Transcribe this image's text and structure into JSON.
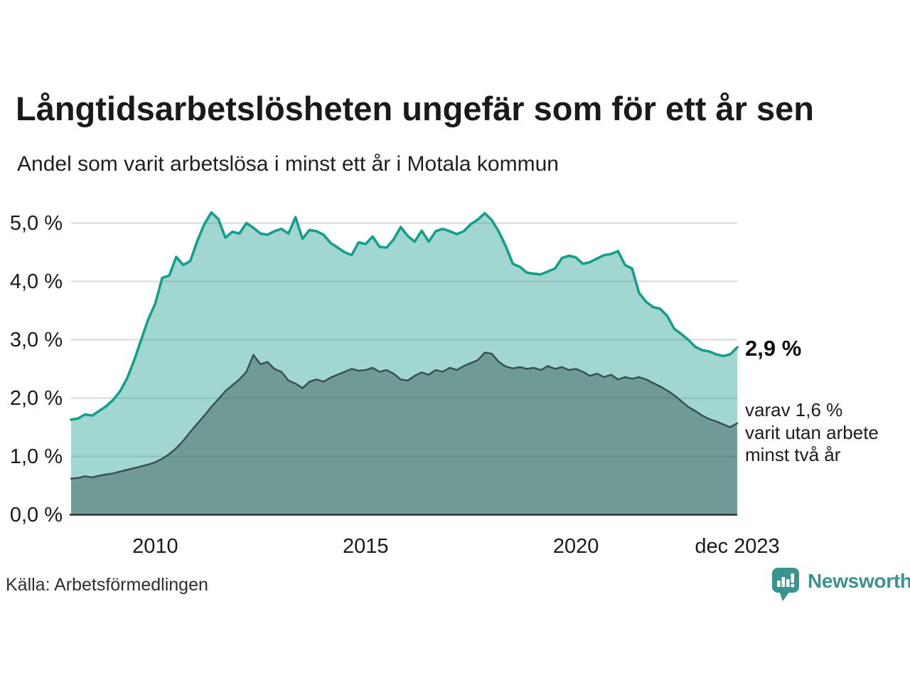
{
  "title": "Långtidsarbetslösheten ungefär som för ett år sen",
  "subtitle": "Andel som varit arbetslösa i minst ett år i Motala kommun",
  "annotations": {
    "latest_value_label": "2,9 %",
    "secondary_note_lines": [
      "varav 1,6 %",
      "varit utan arbete",
      "minst två år"
    ]
  },
  "source": "Källa: Arbetsförmedlingen",
  "branding": {
    "logo_text": "Newsworthy",
    "logo_color": "#3a948c"
  },
  "colors": {
    "line_primary": "#149e8c",
    "fill_primary": "rgba(23,155,141,0.40)",
    "line_secondary": "#375350",
    "fill_secondary": "rgba(52,80,78,0.45)",
    "gridline": "#d9d9d9",
    "baseline": "#2f2f2f",
    "text": "#1a1a1a"
  },
  "chart_data": {
    "type": "area",
    "title": "Långtidsarbetslösheten ungefär som för ett år sen",
    "subtitle": "Andel som varit arbetslösa i minst ett år i Motala kommun",
    "unit": "%",
    "x_start": "2008-01",
    "x_step_months": 2,
    "x_end": "2023-12",
    "ylim": [
      0,
      5.5
    ],
    "grid": true,
    "legend_position": "right-annotations",
    "y_ticks": [
      {
        "value": 0,
        "label": "0,0 %"
      },
      {
        "value": 1,
        "label": "1,0 %"
      },
      {
        "value": 2,
        "label": "2,0 %"
      },
      {
        "value": 3,
        "label": "3,0 %"
      },
      {
        "value": 4,
        "label": "4,0 %"
      },
      {
        "value": 5,
        "label": "5,0 %"
      }
    ],
    "x_ticks": [
      {
        "index": 12,
        "label": "2010"
      },
      {
        "index": 42,
        "label": "2015"
      },
      {
        "index": 72,
        "label": "2020"
      },
      {
        "index": 95,
        "label": "dec 2023"
      }
    ],
    "series": [
      {
        "name": "Andel som varit arbetslösa minst ett år",
        "latest_label": "2,9 %",
        "values": [
          1.63,
          1.65,
          1.72,
          1.7,
          1.78,
          1.86,
          1.97,
          2.12,
          2.34,
          2.65,
          3.0,
          3.35,
          3.62,
          4.06,
          4.1,
          4.42,
          4.28,
          4.35,
          4.69,
          4.98,
          5.18,
          5.07,
          4.75,
          4.85,
          4.82,
          5.0,
          4.92,
          4.82,
          4.8,
          4.86,
          4.9,
          4.82,
          5.1,
          4.73,
          4.88,
          4.86,
          4.8,
          4.66,
          4.58,
          4.5,
          4.45,
          4.67,
          4.64,
          4.77,
          4.59,
          4.58,
          4.72,
          4.93,
          4.78,
          4.68,
          4.87,
          4.68,
          4.86,
          4.9,
          4.86,
          4.81,
          4.86,
          4.98,
          5.06,
          5.17,
          5.05,
          4.85,
          4.6,
          4.3,
          4.25,
          4.15,
          4.13,
          4.12,
          4.17,
          4.22,
          4.4,
          4.44,
          4.41,
          4.3,
          4.33,
          4.39,
          4.45,
          4.47,
          4.52,
          4.28,
          4.22,
          3.8,
          3.65,
          3.56,
          3.53,
          3.41,
          3.19,
          3.1,
          3.0,
          2.88,
          2.82,
          2.8,
          2.75,
          2.72,
          2.75,
          2.87
        ]
      },
      {
        "name": "varav utan arbete minst två år",
        "latest_label": "1,6 %",
        "values": [
          0.62,
          0.63,
          0.66,
          0.64,
          0.67,
          0.69,
          0.71,
          0.74,
          0.77,
          0.8,
          0.83,
          0.86,
          0.9,
          0.96,
          1.04,
          1.14,
          1.27,
          1.42,
          1.56,
          1.7,
          1.85,
          1.98,
          2.12,
          2.22,
          2.32,
          2.45,
          2.74,
          2.58,
          2.62,
          2.5,
          2.45,
          2.3,
          2.25,
          2.17,
          2.28,
          2.32,
          2.28,
          2.35,
          2.4,
          2.45,
          2.5,
          2.47,
          2.48,
          2.52,
          2.45,
          2.48,
          2.42,
          2.32,
          2.3,
          2.38,
          2.44,
          2.4,
          2.48,
          2.45,
          2.52,
          2.48,
          2.55,
          2.6,
          2.65,
          2.78,
          2.76,
          2.62,
          2.54,
          2.51,
          2.53,
          2.5,
          2.52,
          2.48,
          2.55,
          2.5,
          2.53,
          2.48,
          2.5,
          2.45,
          2.38,
          2.42,
          2.36,
          2.4,
          2.32,
          2.36,
          2.33,
          2.36,
          2.32,
          2.26,
          2.2,
          2.13,
          2.05,
          1.95,
          1.85,
          1.78,
          1.7,
          1.64,
          1.6,
          1.55,
          1.5,
          1.57
        ]
      }
    ]
  }
}
